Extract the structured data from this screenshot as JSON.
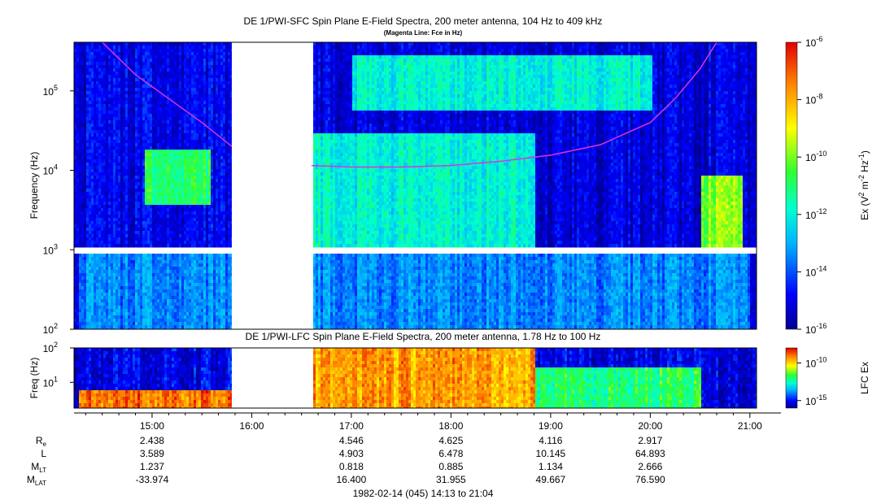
{
  "chart_data": [
    {
      "type": "heatmap",
      "title": "DE 1/PWI-SFC  Spin Plane E-Field Spectra, 200 meter antenna, 104 Hz to 409 kHz",
      "subtitle": "(Magenta Line: Fce in Hz)",
      "ylabel": "Frequency (Hz)",
      "yscale": "log",
      "ylim": [
        100,
        409000
      ],
      "y_ticks": [
        {
          "v": 100,
          "m": "10",
          "e": "2"
        },
        {
          "v": 1000,
          "m": "10",
          "e": "3"
        },
        {
          "v": 10000,
          "m": "10",
          "e": "4"
        },
        {
          "v": 100000,
          "m": "10",
          "e": "5"
        }
      ],
      "colorbar": {
        "label_parts": [
          "Ex (V",
          "2",
          " m",
          "-2",
          " Hz",
          "-1",
          ")"
        ],
        "scale": "log",
        "range": [
          1e-16,
          1e-06
        ],
        "ticks": [
          {
            "v": -6,
            "m": "10",
            "e": "-6"
          },
          {
            "v": -8,
            "m": "10",
            "e": "-8"
          },
          {
            "v": -10,
            "m": "10",
            "e": "-10"
          },
          {
            "v": -12,
            "m": "10",
            "e": "-12"
          },
          {
            "v": -14,
            "m": "10",
            "e": "-14"
          },
          {
            "v": -16,
            "m": "10",
            "e": "-16"
          }
        ]
      },
      "data_gaps": [
        [
          "15:48",
          "16:36"
        ]
      ],
      "fce_line": {
        "name": "Fce",
        "color": "#dd33dd",
        "segments": [
          [
            [
              "14:30",
              409000
            ],
            [
              "14:50",
              160000
            ],
            [
              "15:10",
              80000
            ],
            [
              "15:30",
              40000
            ],
            [
              "15:48",
              20000
            ]
          ],
          [
            [
              "16:36",
              11500
            ],
            [
              "17:00",
              11000
            ],
            [
              "17:30",
              11000
            ],
            [
              "18:00",
              11500
            ],
            [
              "18:30",
              13000
            ],
            [
              "19:00",
              15500
            ],
            [
              "19:30",
              21000
            ],
            [
              "20:00",
              40000
            ],
            [
              "20:15",
              80000
            ],
            [
              "20:30",
              190000
            ],
            [
              "20:40",
              409000
            ]
          ]
        ]
      },
      "features": [
        {
          "t": [
            "14:15",
            "21:00"
          ],
          "f": [
            100,
            1000
          ],
          "level": -13.5
        },
        {
          "t": [
            "14:15",
            "15:48"
          ],
          "f": [
            1000,
            409000
          ],
          "level": -15
        },
        {
          "t": [
            "16:36",
            "18:50"
          ],
          "f": [
            1000,
            30000
          ],
          "level": -12
        },
        {
          "t": [
            "17:00",
            "20:00"
          ],
          "f": [
            60000,
            300000
          ],
          "level": -12
        },
        {
          "t": [
            "14:55",
            "15:35"
          ],
          "f": [
            4000,
            20000
          ],
          "level": -11
        },
        {
          "t": [
            "20:30",
            "20:55"
          ],
          "f": [
            1000,
            9000
          ],
          "level": -10
        }
      ]
    },
    {
      "type": "heatmap",
      "title": "DE 1/PWI-LFC  Spin Plane E-Field Spectra, 200 meter antenna, 1.78 Hz to 100 Hz",
      "ylabel": "Freq (Hz)",
      "yscale": "log",
      "ylim": [
        1.78,
        100
      ],
      "y_ticks": [
        {
          "v": 10,
          "m": "10",
          "e": "1"
        },
        {
          "v": 100,
          "m": "10",
          "e": "2"
        }
      ],
      "colorbar": {
        "label": "LFC Ex",
        "scale": "log",
        "range": [
          1e-16,
          1e-08
        ],
        "ticks": [
          {
            "v": -10,
            "m": "10",
            "e": "-10"
          },
          {
            "v": -15,
            "m": "10",
            "e": "-15"
          }
        ]
      },
      "data_gaps": [
        [
          "15:48",
          "16:36"
        ]
      ],
      "features": [
        {
          "t": [
            "14:15",
            "15:48"
          ],
          "f": [
            1.78,
            6
          ],
          "level": -9
        },
        {
          "t": [
            "16:36",
            "18:50"
          ],
          "f": [
            1.78,
            100
          ],
          "level": -9.5
        },
        {
          "t": [
            "18:50",
            "20:30"
          ],
          "f": [
            1.78,
            30
          ],
          "level": -12
        }
      ]
    }
  ],
  "x_axis": {
    "range": [
      "14:13",
      "21:04"
    ],
    "ticks": [
      "15:00",
      "16:00",
      "17:00",
      "18:00",
      "19:00",
      "20:00",
      "21:00"
    ]
  },
  "ephemeris": {
    "rows": [
      {
        "name": "Re",
        "label": "R",
        "sub": "e",
        "values": [
          "2.438",
          "",
          "4.546",
          "4.625",
          "4.116",
          "2.917"
        ]
      },
      {
        "name": "L",
        "label": "L",
        "sub": "",
        "values": [
          "3.589",
          "",
          "4.903",
          "6.478",
          "10.145",
          "64.893"
        ]
      },
      {
        "name": "MLT",
        "label": "M",
        "sub": "LT",
        "values": [
          "1.237",
          "",
          "0.818",
          "0.885",
          "1.134",
          "2.666"
        ]
      },
      {
        "name": "MLAT",
        "label": "M",
        "sub": "LAT",
        "values": [
          "-33.974",
          "",
          "16.400",
          "31.955",
          "49.667",
          "76.590"
        ]
      }
    ]
  },
  "footer": "1982-02-14 (045) 14:13 to 21:04"
}
